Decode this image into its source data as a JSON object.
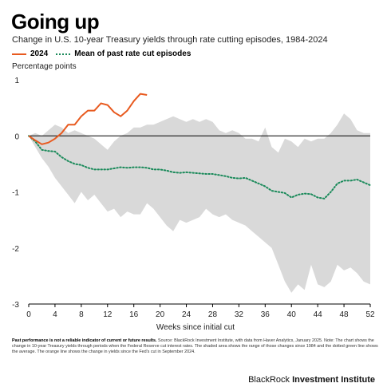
{
  "header": {
    "title": "Going up",
    "subtitle": "Change in U.S. 10-year Treasury yields through rate cutting episodes, 1984-2024"
  },
  "legend": {
    "series_2024": "2024",
    "series_mean": "Mean of past rate cut episodes"
  },
  "colors": {
    "series_2024": "#e85a1f",
    "series_mean": "#1a8a5a",
    "range_band": "#d9d9d9"
  },
  "footnote": {
    "bold": "Past performance is not a reliable indicator of current or future results.",
    "text": "Source: BlackRock Investment Institute, with data from Haver Analytics, January 2025. Note: The chart shows the change in 10-year Treasury yields through periods when the Federal Reserve cut interest rates. The shaded area shows the range of those changes since 1984 and the dotted green line shows the average. The orange line shows the change in yields since the Fed's cut in September 2024."
  },
  "brand": {
    "name": "BlackRock",
    "unit": "Investment Institute"
  },
  "chart_data": {
    "type": "line",
    "ylabel": "Percentage points",
    "xlabel": "Weeks since initial cut",
    "xlim": [
      0,
      52
    ],
    "ylim": [
      -3,
      1
    ],
    "x_ticks": [
      0,
      4,
      8,
      12,
      16,
      20,
      24,
      28,
      32,
      36,
      40,
      44,
      48,
      52
    ],
    "y_ticks": [
      1,
      0,
      -1,
      -2,
      -3
    ],
    "grid": false,
    "legend_position": "top-left",
    "range_band": {
      "x": [
        0,
        1,
        2,
        3,
        4,
        5,
        6,
        7,
        8,
        9,
        10,
        11,
        12,
        13,
        14,
        15,
        16,
        17,
        18,
        19,
        20,
        21,
        22,
        23,
        24,
        25,
        26,
        27,
        28,
        29,
        30,
        31,
        32,
        33,
        34,
        35,
        36,
        37,
        38,
        39,
        40,
        41,
        42,
        43,
        44,
        45,
        46,
        47,
        48,
        49,
        50,
        51,
        52
      ],
      "upper": [
        0,
        0.05,
        0,
        0.1,
        0.2,
        0.15,
        0.05,
        0.1,
        0.05,
        0,
        -0.05,
        -0.15,
        -0.25,
        -0.1,
        0,
        0.05,
        0.15,
        0.15,
        0.2,
        0.2,
        0.25,
        0.3,
        0.35,
        0.3,
        0.25,
        0.3,
        0.25,
        0.3,
        0.25,
        0.1,
        0.05,
        0.1,
        0.05,
        -0.05,
        -0.05,
        -0.1,
        0.15,
        -0.2,
        -0.3,
        -0.05,
        -0.1,
        -0.2,
        -0.05,
        -0.1,
        -0.05,
        -0.05,
        0.05,
        0.2,
        0.4,
        0.3,
        0.1,
        0.05,
        0.05
      ],
      "lower": [
        0,
        -0.2,
        -0.4,
        -0.55,
        -0.75,
        -0.9,
        -1.05,
        -1.2,
        -1.0,
        -1.15,
        -1.05,
        -1.2,
        -1.35,
        -1.3,
        -1.45,
        -1.35,
        -1.4,
        -1.4,
        -1.2,
        -1.3,
        -1.45,
        -1.6,
        -1.7,
        -1.5,
        -1.55,
        -1.5,
        -1.45,
        -1.3,
        -1.4,
        -1.45,
        -1.4,
        -1.5,
        -1.55,
        -1.6,
        -1.7,
        -1.8,
        -1.9,
        -2.0,
        -2.3,
        -2.6,
        -2.8,
        -2.65,
        -2.75,
        -2.3,
        -2.65,
        -2.7,
        -2.6,
        -2.3,
        -2.4,
        -2.35,
        -2.45,
        -2.6,
        -2.65
      ]
    },
    "series": [
      {
        "name": "2024",
        "x": [
          0,
          1,
          2,
          3,
          4,
          5,
          6,
          7,
          8,
          9,
          10,
          11,
          12,
          13,
          14,
          15,
          16,
          17,
          18
        ],
        "values": [
          0,
          -0.08,
          -0.15,
          -0.12,
          -0.05,
          0.05,
          0.2,
          0.2,
          0.35,
          0.45,
          0.45,
          0.58,
          0.55,
          0.42,
          0.35,
          0.45,
          0.62,
          0.75,
          0.73
        ]
      },
      {
        "name": "Mean of past rate cut episodes",
        "x": [
          0,
          1,
          2,
          3,
          4,
          5,
          6,
          7,
          8,
          9,
          10,
          11,
          12,
          13,
          14,
          15,
          16,
          17,
          18,
          19,
          20,
          21,
          22,
          23,
          24,
          25,
          26,
          27,
          28,
          29,
          30,
          31,
          32,
          33,
          34,
          35,
          36,
          37,
          38,
          39,
          40,
          41,
          42,
          43,
          44,
          45,
          46,
          47,
          48,
          49,
          50,
          51,
          52
        ],
        "values": [
          0,
          -0.1,
          -0.25,
          -0.27,
          -0.28,
          -0.38,
          -0.45,
          -0.5,
          -0.52,
          -0.57,
          -0.6,
          -0.6,
          -0.6,
          -0.58,
          -0.56,
          -0.57,
          -0.56,
          -0.56,
          -0.57,
          -0.6,
          -0.6,
          -0.62,
          -0.65,
          -0.66,
          -0.65,
          -0.66,
          -0.67,
          -0.68,
          -0.68,
          -0.7,
          -0.72,
          -0.75,
          -0.76,
          -0.75,
          -0.8,
          -0.85,
          -0.9,
          -0.98,
          -1.0,
          -1.02,
          -1.1,
          -1.05,
          -1.03,
          -1.04,
          -1.1,
          -1.12,
          -1.0,
          -0.85,
          -0.8,
          -0.8,
          -0.78,
          -0.83,
          -0.88
        ]
      }
    ]
  }
}
